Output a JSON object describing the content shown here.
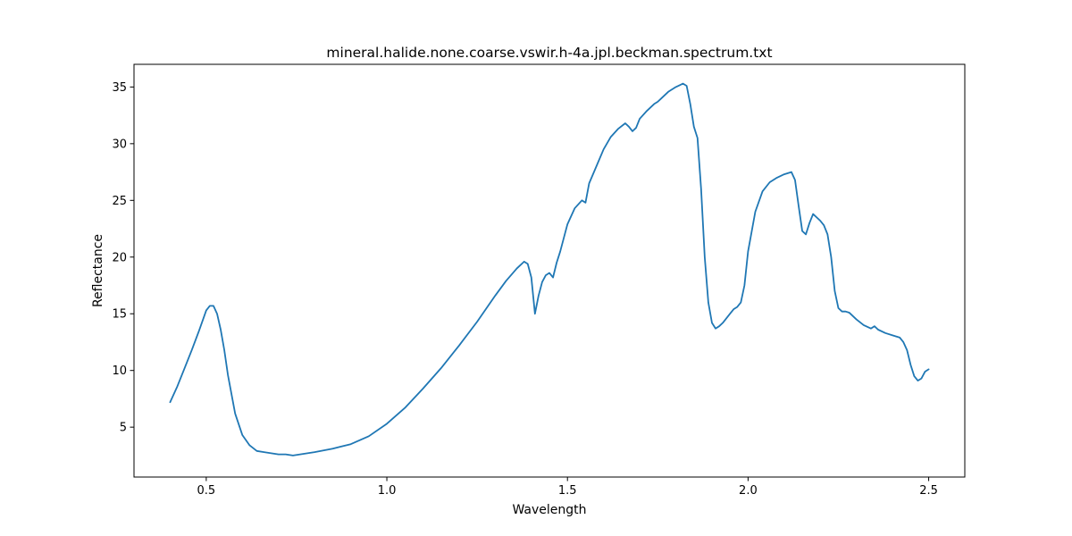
{
  "chart_data": {
    "type": "line",
    "title": "mineral.halide.none.coarse.vswir.h-4a.jpl.beckman.spectrum.txt",
    "xlabel": "Wavelength",
    "ylabel": "Reflectance",
    "xlim": [
      0.3,
      2.6
    ],
    "ylim": [
      0.6,
      37.0
    ],
    "xticks": [
      0.5,
      1.0,
      1.5,
      2.0,
      2.5
    ],
    "xtick_labels": [
      "0.5",
      "1.0",
      "1.5",
      "2.0",
      "2.5"
    ],
    "yticks": [
      5,
      10,
      15,
      20,
      25,
      30,
      35
    ],
    "ytick_labels": [
      "5",
      "10",
      "15",
      "20",
      "25",
      "30",
      "35"
    ],
    "grid": false,
    "series": [
      {
        "color": "#1f77b4",
        "x": [
          0.4,
          0.42,
          0.44,
          0.46,
          0.48,
          0.5,
          0.51,
          0.52,
          0.53,
          0.54,
          0.55,
          0.56,
          0.58,
          0.6,
          0.62,
          0.64,
          0.66,
          0.68,
          0.7,
          0.72,
          0.74,
          0.76,
          0.78,
          0.8,
          0.85,
          0.9,
          0.95,
          1.0,
          1.05,
          1.1,
          1.15,
          1.2,
          1.25,
          1.3,
          1.33,
          1.36,
          1.38,
          1.39,
          1.4,
          1.41,
          1.42,
          1.43,
          1.44,
          1.45,
          1.46,
          1.47,
          1.48,
          1.49,
          1.5,
          1.52,
          1.54,
          1.55,
          1.56,
          1.58,
          1.6,
          1.62,
          1.64,
          1.66,
          1.67,
          1.68,
          1.69,
          1.7,
          1.72,
          1.74,
          1.75,
          1.76,
          1.78,
          1.8,
          1.82,
          1.83,
          1.84,
          1.85,
          1.86,
          1.87,
          1.88,
          1.89,
          1.9,
          1.91,
          1.92,
          1.93,
          1.94,
          1.95,
          1.96,
          1.97,
          1.98,
          1.99,
          2.0,
          2.02,
          2.04,
          2.06,
          2.08,
          2.1,
          2.12,
          2.13,
          2.14,
          2.15,
          2.16,
          2.17,
          2.18,
          2.19,
          2.2,
          2.21,
          2.22,
          2.23,
          2.24,
          2.25,
          2.26,
          2.27,
          2.28,
          2.3,
          2.32,
          2.34,
          2.35,
          2.36,
          2.38,
          2.4,
          2.42,
          2.43,
          2.44,
          2.45,
          2.46,
          2.47,
          2.48,
          2.49,
          2.5
        ],
        "y": [
          7.2,
          8.6,
          10.2,
          11.8,
          13.5,
          15.3,
          15.7,
          15.7,
          15.0,
          13.6,
          11.8,
          9.6,
          6.2,
          4.3,
          3.4,
          2.9,
          2.8,
          2.7,
          2.6,
          2.6,
          2.5,
          2.6,
          2.7,
          2.8,
          3.1,
          3.5,
          4.2,
          5.3,
          6.7,
          8.4,
          10.2,
          12.2,
          14.3,
          16.6,
          17.9,
          19.0,
          19.6,
          19.4,
          18.2,
          15.0,
          16.6,
          17.8,
          18.4,
          18.6,
          18.2,
          19.5,
          20.5,
          21.7,
          22.9,
          24.3,
          25.0,
          24.8,
          26.5,
          28.0,
          29.5,
          30.6,
          31.3,
          31.8,
          31.5,
          31.1,
          31.4,
          32.2,
          32.9,
          33.5,
          33.7,
          34.0,
          34.6,
          35.0,
          35.3,
          35.1,
          33.5,
          31.5,
          30.5,
          26.0,
          20.0,
          16.0,
          14.2,
          13.7,
          13.9,
          14.2,
          14.6,
          15.0,
          15.4,
          15.6,
          16.0,
          17.5,
          20.5,
          24.0,
          25.8,
          26.6,
          27.0,
          27.3,
          27.5,
          26.8,
          24.5,
          22.3,
          22.0,
          23.0,
          23.8,
          23.5,
          23.2,
          22.8,
          22.0,
          20.0,
          17.0,
          15.5,
          15.2,
          15.2,
          15.1,
          14.5,
          14.0,
          13.7,
          13.9,
          13.6,
          13.3,
          13.1,
          12.9,
          12.5,
          11.8,
          10.5,
          9.5,
          9.1,
          9.3,
          9.9,
          10.1
        ]
      }
    ]
  }
}
